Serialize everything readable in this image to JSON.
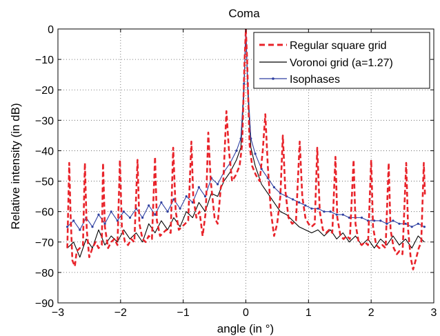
{
  "chart_data": {
    "type": "line",
    "title": "Coma",
    "xlabel": "angle (in °)",
    "ylabel": "Relative intensity  (in dB)",
    "xlim": [
      -3,
      3
    ],
    "ylim": [
      -90,
      0
    ],
    "xticks": [
      -3,
      -2,
      -1,
      0,
      1,
      2,
      3
    ],
    "yticks": [
      0,
      -10,
      -20,
      -30,
      -40,
      -50,
      -60,
      -70,
      -80,
      -90
    ],
    "xtick_labels": [
      "−3",
      "−2",
      "−1",
      "0",
      "1",
      "2",
      "3"
    ],
    "ytick_labels": [
      "0",
      "−10",
      "−20",
      "−30",
      "−40",
      "−50",
      "−60",
      "−70",
      "−80",
      "−90"
    ],
    "grid": true,
    "legend_position": "top-right",
    "series": [
      {
        "name": "Regular square grid",
        "color": "#e8232a",
        "style": "dashed",
        "points": [
          [
            -2.85,
            -72
          ],
          [
            -2.82,
            -44
          ],
          [
            -2.8,
            -60
          ],
          [
            -2.77,
            -76
          ],
          [
            -2.73,
            -78
          ],
          [
            -2.7,
            -73
          ],
          [
            -2.65,
            -72
          ],
          [
            -2.6,
            -71
          ],
          [
            -2.57,
            -44
          ],
          [
            -2.54,
            -66
          ],
          [
            -2.5,
            -75
          ],
          [
            -2.45,
            -72
          ],
          [
            -2.4,
            -70
          ],
          [
            -2.35,
            -72
          ],
          [
            -2.3,
            -71
          ],
          [
            -2.28,
            -44
          ],
          [
            -2.25,
            -65
          ],
          [
            -2.2,
            -72
          ],
          [
            -2.15,
            -70
          ],
          [
            -2.1,
            -69
          ],
          [
            -2.05,
            -71
          ],
          [
            -2.01,
            -43
          ],
          [
            -1.98,
            -65
          ],
          [
            -1.93,
            -70
          ],
          [
            -1.88,
            -71
          ],
          [
            -1.83,
            -69
          ],
          [
            -1.78,
            -70
          ],
          [
            -1.73,
            -43
          ],
          [
            -1.7,
            -64
          ],
          [
            -1.65,
            -69
          ],
          [
            -1.6,
            -70
          ],
          [
            -1.55,
            -68
          ],
          [
            -1.5,
            -69
          ],
          [
            -1.45,
            -42
          ],
          [
            -1.42,
            -63
          ],
          [
            -1.37,
            -68
          ],
          [
            -1.32,
            -67
          ],
          [
            -1.27,
            -66
          ],
          [
            -1.2,
            -67
          ],
          [
            -1.16,
            -39
          ],
          [
            -1.12,
            -60
          ],
          [
            -1.07,
            -66
          ],
          [
            -1.02,
            -65
          ],
          [
            -0.97,
            -64
          ],
          [
            -0.92,
            -63
          ],
          [
            -0.87,
            -37
          ],
          [
            -0.84,
            -55
          ],
          [
            -0.79,
            -62
          ],
          [
            -0.74,
            -60
          ],
          [
            -0.69,
            -68
          ],
          [
            -0.64,
            -60
          ],
          [
            -0.6,
            -34
          ],
          [
            -0.56,
            -50
          ],
          [
            -0.5,
            -62
          ],
          [
            -0.45,
            -64
          ],
          [
            -0.4,
            -52
          ],
          [
            -0.36,
            -50
          ],
          [
            -0.31,
            -27
          ],
          [
            -0.27,
            -40
          ],
          [
            -0.22,
            -50
          ],
          [
            -0.16,
            -48
          ],
          [
            -0.1,
            -45
          ],
          [
            -0.06,
            -38
          ],
          [
            -0.02,
            -10
          ],
          [
            0,
            0
          ],
          [
            0.02,
            -10
          ],
          [
            0.06,
            -38
          ],
          [
            0.1,
            -45
          ],
          [
            0.16,
            -48
          ],
          [
            0.22,
            -50
          ],
          [
            0.27,
            -40
          ],
          [
            0.31,
            -28
          ],
          [
            0.35,
            -45
          ],
          [
            0.4,
            -60
          ],
          [
            0.45,
            -68
          ],
          [
            0.5,
            -64
          ],
          [
            0.55,
            -55
          ],
          [
            0.59,
            -35
          ],
          [
            0.63,
            -53
          ],
          [
            0.68,
            -62
          ],
          [
            0.74,
            -64
          ],
          [
            0.8,
            -63
          ],
          [
            0.86,
            -37
          ],
          [
            0.9,
            -55
          ],
          [
            0.95,
            -62
          ],
          [
            1.0,
            -64
          ],
          [
            1.05,
            -65
          ],
          [
            1.1,
            -64
          ],
          [
            1.14,
            -39
          ],
          [
            1.18,
            -60
          ],
          [
            1.23,
            -66
          ],
          [
            1.28,
            -67
          ],
          [
            1.33,
            -66
          ],
          [
            1.38,
            -67
          ],
          [
            1.43,
            -42
          ],
          [
            1.46,
            -62
          ],
          [
            1.51,
            -68
          ],
          [
            1.56,
            -69
          ],
          [
            1.61,
            -68
          ],
          [
            1.66,
            -69
          ],
          [
            1.72,
            -43
          ],
          [
            1.75,
            -64
          ],
          [
            1.8,
            -70
          ],
          [
            1.85,
            -71
          ],
          [
            1.9,
            -70
          ],
          [
            1.95,
            -71
          ],
          [
            2.0,
            -43
          ],
          [
            2.03,
            -65
          ],
          [
            2.08,
            -71
          ],
          [
            2.13,
            -72
          ],
          [
            2.18,
            -71
          ],
          [
            2.23,
            -72
          ],
          [
            2.28,
            -44
          ],
          [
            2.31,
            -66
          ],
          [
            2.36,
            -72
          ],
          [
            2.41,
            -74
          ],
          [
            2.45,
            -73
          ],
          [
            2.5,
            -74
          ],
          [
            2.56,
            -44
          ],
          [
            2.59,
            -66
          ],
          [
            2.63,
            -75
          ],
          [
            2.67,
            -79
          ],
          [
            2.71,
            -76
          ],
          [
            2.76,
            -72
          ],
          [
            2.8,
            -70
          ],
          [
            2.84,
            -44
          ],
          [
            2.86,
            -55
          ]
        ]
      },
      {
        "name": "Voronoi grid (a=1.27)",
        "color": "#000000",
        "style": "solid",
        "points": [
          [
            -2.85,
            -72
          ],
          [
            -2.75,
            -70
          ],
          [
            -2.65,
            -75
          ],
          [
            -2.55,
            -69
          ],
          [
            -2.45,
            -72
          ],
          [
            -2.35,
            -66
          ],
          [
            -2.25,
            -71
          ],
          [
            -2.15,
            -68
          ],
          [
            -2.05,
            -70
          ],
          [
            -1.95,
            -66
          ],
          [
            -1.85,
            -69
          ],
          [
            -1.75,
            -67
          ],
          [
            -1.65,
            -70
          ],
          [
            -1.55,
            -64
          ],
          [
            -1.45,
            -67
          ],
          [
            -1.35,
            -63
          ],
          [
            -1.25,
            -66
          ],
          [
            -1.15,
            -62
          ],
          [
            -1.05,
            -65
          ],
          [
            -0.95,
            -60
          ],
          [
            -0.85,
            -62
          ],
          [
            -0.75,
            -57
          ],
          [
            -0.65,
            -60
          ],
          [
            -0.55,
            -54
          ],
          [
            -0.45,
            -55
          ],
          [
            -0.35,
            -50
          ],
          [
            -0.25,
            -47
          ],
          [
            -0.15,
            -43
          ],
          [
            -0.08,
            -39
          ],
          [
            -0.03,
            -20
          ],
          [
            0,
            0
          ],
          [
            0.03,
            -20
          ],
          [
            0.08,
            -39
          ],
          [
            0.15,
            -45
          ],
          [
            0.25,
            -51
          ],
          [
            0.35,
            -54
          ],
          [
            0.45,
            -57
          ],
          [
            0.55,
            -60
          ],
          [
            0.65,
            -61
          ],
          [
            0.75,
            -63
          ],
          [
            0.85,
            -65
          ],
          [
            0.95,
            -66
          ],
          [
            1.05,
            -67
          ],
          [
            1.15,
            -66
          ],
          [
            1.25,
            -68
          ],
          [
            1.35,
            -66
          ],
          [
            1.45,
            -69
          ],
          [
            1.55,
            -67
          ],
          [
            1.65,
            -70
          ],
          [
            1.75,
            -68
          ],
          [
            1.85,
            -71
          ],
          [
            1.95,
            -69
          ],
          [
            2.05,
            -72
          ],
          [
            2.15,
            -69
          ],
          [
            2.25,
            -71
          ],
          [
            2.35,
            -68
          ],
          [
            2.45,
            -71
          ],
          [
            2.55,
            -69
          ],
          [
            2.65,
            -72
          ],
          [
            2.75,
            -68
          ],
          [
            2.85,
            -70
          ]
        ]
      },
      {
        "name": "Isophases",
        "color": "#2e3fa0",
        "style": "solid-markers",
        "points": [
          [
            -2.85,
            -65
          ],
          [
            -2.75,
            -63
          ],
          [
            -2.65,
            -66
          ],
          [
            -2.55,
            -62
          ],
          [
            -2.45,
            -65
          ],
          [
            -2.35,
            -61
          ],
          [
            -2.25,
            -64
          ],
          [
            -2.15,
            -60
          ],
          [
            -2.05,
            -63
          ],
          [
            -1.95,
            -60
          ],
          [
            -1.85,
            -62
          ],
          [
            -1.75,
            -59
          ],
          [
            -1.65,
            -62
          ],
          [
            -1.55,
            -58
          ],
          [
            -1.45,
            -61
          ],
          [
            -1.35,
            -57
          ],
          [
            -1.25,
            -60
          ],
          [
            -1.15,
            -56
          ],
          [
            -1.05,
            -59
          ],
          [
            -0.95,
            -55
          ],
          [
            -0.85,
            -57
          ],
          [
            -0.75,
            -52
          ],
          [
            -0.65,
            -55
          ],
          [
            -0.55,
            -49
          ],
          [
            -0.45,
            -51
          ],
          [
            -0.35,
            -47
          ],
          [
            -0.25,
            -44
          ],
          [
            -0.15,
            -40
          ],
          [
            -0.08,
            -36
          ],
          [
            -0.03,
            -18
          ],
          [
            0,
            0
          ],
          [
            0.03,
            -18
          ],
          [
            0.08,
            -36
          ],
          [
            0.15,
            -41
          ],
          [
            0.25,
            -46
          ],
          [
            0.35,
            -49
          ],
          [
            0.45,
            -52
          ],
          [
            0.55,
            -54
          ],
          [
            0.65,
            -55
          ],
          [
            0.75,
            -56
          ],
          [
            0.85,
            -57
          ],
          [
            0.95,
            -58
          ],
          [
            1.05,
            -59
          ],
          [
            1.15,
            -59
          ],
          [
            1.25,
            -60
          ],
          [
            1.35,
            -60
          ],
          [
            1.45,
            -61
          ],
          [
            1.55,
            -61
          ],
          [
            1.65,
            -62
          ],
          [
            1.75,
            -62
          ],
          [
            1.85,
            -62
          ],
          [
            1.95,
            -63
          ],
          [
            2.05,
            -63
          ],
          [
            2.15,
            -63
          ],
          [
            2.25,
            -64
          ],
          [
            2.35,
            -63
          ],
          [
            2.45,
            -64
          ],
          [
            2.55,
            -64
          ],
          [
            2.65,
            -65
          ],
          [
            2.75,
            -64
          ],
          [
            2.85,
            -65
          ]
        ]
      }
    ]
  }
}
